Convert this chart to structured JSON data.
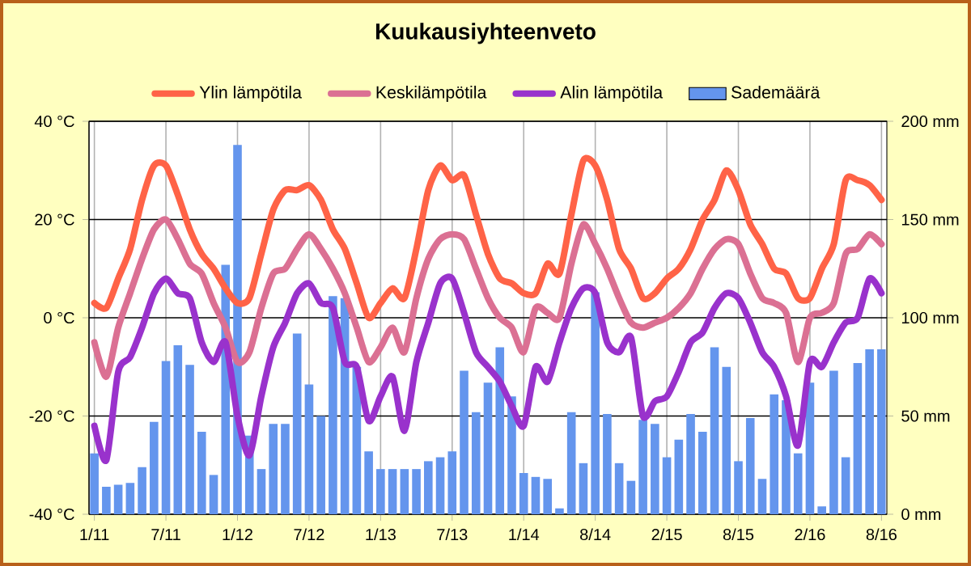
{
  "chart_data": {
    "type": "line",
    "title": "Kuukausiyhteenveto",
    "categories": [
      "1/11",
      null,
      null,
      null,
      null,
      null,
      "7/11",
      null,
      null,
      null,
      null,
      null,
      "1/12",
      null,
      null,
      null,
      null,
      null,
      "7/12",
      null,
      null,
      null,
      null,
      null,
      "1/13",
      null,
      null,
      null,
      null,
      null,
      "7/13",
      null,
      null,
      null,
      null,
      null,
      "1/14",
      null,
      null,
      null,
      null,
      null,
      "8/14",
      null,
      null,
      null,
      null,
      null,
      "2/15",
      null,
      null,
      null,
      null,
      null,
      "8/15",
      null,
      null,
      null,
      null,
      null,
      "2/16",
      null,
      null,
      null,
      null,
      null,
      "8/16"
    ],
    "series": [
      {
        "name": "Sademäärä",
        "type": "bar",
        "axis": "y2",
        "color": "#6495ed",
        "values": [
          31,
          14,
          15,
          16,
          24,
          47,
          78,
          86,
          76,
          42,
          20,
          127,
          188,
          40,
          23,
          46,
          46,
          92,
          66,
          50,
          111,
          110,
          75,
          32,
          23,
          23,
          23,
          23,
          27,
          29,
          32,
          73,
          52,
          67,
          85,
          60,
          21,
          19,
          18,
          3,
          52,
          26,
          113,
          51,
          26,
          17,
          48,
          46,
          29,
          38,
          51,
          42,
          85,
          75,
          27,
          49,
          18,
          61,
          58,
          31,
          67,
          4,
          73,
          29,
          77,
          84,
          84
        ]
      },
      {
        "name": "Ylin lämpötila",
        "color": "#ff6347",
        "values": [
          3,
          2,
          8,
          14,
          24,
          31,
          31,
          25,
          18,
          13,
          10,
          6,
          3,
          4,
          13,
          22,
          26,
          26,
          27,
          24,
          18,
          14,
          7,
          0,
          3,
          6,
          4,
          14,
          26,
          31,
          28,
          29,
          21,
          13,
          8,
          7,
          5,
          5,
          11,
          9,
          21,
          32,
          31,
          24,
          14,
          10,
          4,
          5,
          8,
          10,
          14,
          20,
          24,
          30,
          26,
          19,
          15,
          10,
          9,
          4,
          4,
          10,
          15,
          28,
          28,
          27,
          24
        ]
      },
      {
        "name": "Keskilämpötila",
        "color": "#db7093",
        "values": [
          -5,
          -12,
          -2,
          5,
          12,
          18,
          20,
          16,
          11,
          9,
          3,
          -2,
          -9,
          -7,
          2,
          9,
          10,
          14,
          17,
          14,
          10,
          5,
          -2,
          -9,
          -6,
          -2,
          -7,
          4,
          12,
          16,
          17,
          16,
          10,
          4,
          0,
          -2,
          -7,
          2,
          1,
          0,
          11,
          19,
          15,
          10,
          4,
          -1,
          -2,
          -1,
          0,
          2,
          5,
          10,
          14,
          16,
          15,
          9,
          4,
          3,
          1,
          -9,
          0,
          1,
          3,
          13,
          14,
          17,
          15
        ]
      },
      {
        "name": "Alin lämpötila",
        "color": "#9932cc",
        "values": [
          -22,
          -29,
          -11,
          -8,
          -2,
          5,
          8,
          5,
          4,
          -5,
          -9,
          -5,
          -20,
          -28,
          -16,
          -6,
          -1,
          5,
          7,
          3,
          2,
          -9,
          -10,
          -21,
          -16,
          -12,
          -23,
          -9,
          -1,
          7,
          8,
          1,
          -7,
          -10,
          -13,
          -18,
          -22,
          -10,
          -13,
          -5,
          2,
          6,
          5,
          -5,
          -7,
          -4,
          -20,
          -17,
          -16,
          -11,
          -5,
          -3,
          2,
          5,
          4,
          -1,
          -7,
          -10,
          -16,
          -26,
          -9,
          -10,
          -5,
          -1,
          0,
          8,
          5
        ]
      }
    ],
    "ylim": [
      -40,
      40
    ],
    "yticks": [
      {
        "value": -40,
        "label": "-40 °C"
      },
      {
        "value": -20,
        "label": "-20 °C"
      },
      {
        "value": 0,
        "label": "0 °C"
      },
      {
        "value": 20,
        "label": "20 °C"
      },
      {
        "value": 40,
        "label": "40 °C"
      }
    ],
    "y2lim": [
      0,
      200
    ],
    "y2ticks": [
      {
        "value": 0,
        "label": "0 mm"
      },
      {
        "value": 50,
        "label": "50 mm"
      },
      {
        "value": 100,
        "label": "100 mm"
      },
      {
        "value": 150,
        "label": "150 mm"
      },
      {
        "value": 200,
        "label": "200 mm"
      }
    ],
    "grid": true,
    "legend": "top"
  }
}
